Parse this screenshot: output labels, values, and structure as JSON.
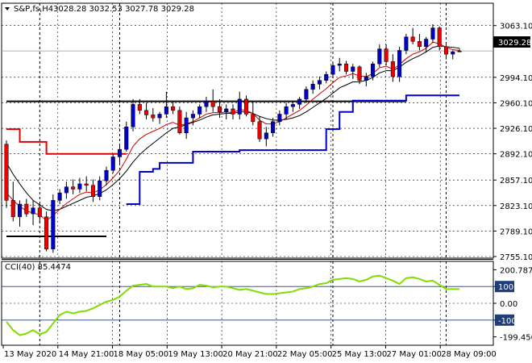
{
  "header": {
    "symbol_line": "S&P,fs,H4",
    "ohlc": "3028.28 3032.53 3027.78 3029.28"
  },
  "price_tag": "3029.28",
  "colors": {
    "bull": "#0000cc",
    "bear": "#ee0000",
    "ma_fast": "#cc0000",
    "ma_slow": "#000000",
    "stop_upper": "#dd0000",
    "stop_lower": "#0000cc",
    "level_line": "#000000",
    "cci": "#80dd00",
    "cci_level": "#1f3f7a",
    "grid": "#000000"
  },
  "chart_data": [
    {
      "type": "candlestick",
      "title": "S&P,fs,H4",
      "ylim": [
        2755.1,
        3080.0
      ],
      "y_ticks": [
        3063.1,
        2994.1,
        2960.1,
        2926.1,
        2892.1,
        2857.1,
        2823.1,
        2789.1,
        2755.1
      ],
      "y_tick_labels": [
        "3063.10",
        "2994.10",
        "2960.10",
        "2926.10",
        "2892.10",
        "2857.10",
        "2823.10",
        "2789.10",
        "2755.10"
      ],
      "x_labels": [
        "13 May 2020",
        "14 May 21:00",
        "18 May 05:00",
        "19 May 13:00",
        "20 May 21:00",
        "22 May 05:00",
        "25 May 13:00",
        "27 May 01:00",
        "28 May 09:00"
      ],
      "candles": [
        [
          2905,
          2910,
          2820,
          2830
        ],
        [
          2830,
          2855,
          2802,
          2808
        ],
        [
          2808,
          2830,
          2795,
          2825
        ],
        [
          2825,
          2832,
          2808,
          2812
        ],
        [
          2812,
          2830,
          2797,
          2820
        ],
        [
          2820,
          2825,
          2800,
          2808
        ],
        [
          2808,
          2815,
          2762,
          2765
        ],
        [
          2765,
          2838,
          2760,
          2830
        ],
        [
          2830,
          2845,
          2825,
          2840
        ],
        [
          2840,
          2855,
          2832,
          2848
        ],
        [
          2848,
          2858,
          2838,
          2845
        ],
        [
          2845,
          2860,
          2840,
          2852
        ],
        [
          2852,
          2862,
          2842,
          2850
        ],
        [
          2850,
          2858,
          2828,
          2835
        ],
        [
          2835,
          2862,
          2830,
          2856
        ],
        [
          2856,
          2875,
          2850,
          2870
        ],
        [
          2870,
          2892,
          2866,
          2888
        ],
        [
          2888,
          2905,
          2880,
          2898
        ],
        [
          2898,
          2935,
          2895,
          2928
        ],
        [
          2928,
          2965,
          2922,
          2958
        ],
        [
          2958,
          2965,
          2945,
          2950
        ],
        [
          2950,
          2960,
          2938,
          2944
        ],
        [
          2944,
          2953,
          2935,
          2940
        ],
        [
          2940,
          2948,
          2932,
          2945
        ],
        [
          2945,
          2975,
          2940,
          2955
        ],
        [
          2955,
          2962,
          2945,
          2950
        ],
        [
          2950,
          2955,
          2918,
          2920
        ],
        [
          2920,
          2948,
          2912,
          2940
        ],
        [
          2940,
          2950,
          2930,
          2945
        ],
        [
          2945,
          2958,
          2940,
          2955
        ],
        [
          2955,
          2968,
          2948,
          2962
        ],
        [
          2962,
          2978,
          2948,
          2955
        ],
        [
          2955,
          2965,
          2940,
          2948
        ],
        [
          2948,
          2958,
          2938,
          2952
        ],
        [
          2952,
          2958,
          2938,
          2945
        ],
        [
          2945,
          2975,
          2938,
          2965
        ],
        [
          2965,
          2970,
          2942,
          2945
        ],
        [
          2945,
          2962,
          2930,
          2935
        ],
        [
          2935,
          2942,
          2908,
          2912
        ],
        [
          2912,
          2928,
          2902,
          2920
        ],
        [
          2920,
          2940,
          2915,
          2935
        ],
        [
          2935,
          2950,
          2930,
          2945
        ],
        [
          2945,
          2960,
          2938,
          2955
        ],
        [
          2955,
          2962,
          2948,
          2958
        ],
        [
          2958,
          2968,
          2952,
          2965
        ],
        [
          2965,
          2982,
          2960,
          2978
        ],
        [
          2978,
          2990,
          2972,
          2985
        ],
        [
          2985,
          2995,
          2978,
          2990
        ],
        [
          2990,
          3002,
          2986,
          2998
        ],
        [
          2998,
          3015,
          2994,
          3010
        ],
        [
          3010,
          3020,
          3002,
          3012
        ],
        [
          3012,
          3016,
          2998,
          3002
        ],
        [
          3002,
          3012,
          2992,
          3008
        ],
        [
          3008,
          3010,
          2985,
          2990
        ],
        [
          2990,
          3000,
          2982,
          2995
        ],
        [
          2995,
          3015,
          2990,
          3012
        ],
        [
          3012,
          3038,
          3008,
          3032
        ],
        [
          3032,
          3038,
          3010,
          3015
        ],
        [
          3015,
          3025,
          2988,
          2995
        ],
        [
          2995,
          3035,
          2988,
          3030
        ],
        [
          3030,
          3052,
          3025,
          3048
        ],
        [
          3048,
          3060,
          3038,
          3042
        ],
        [
          3042,
          3052,
          3030,
          3035
        ],
        [
          3035,
          3048,
          3028,
          3045
        ],
        [
          3045,
          3065,
          3040,
          3060
        ],
        [
          3060,
          3062,
          3030,
          3035
        ],
        [
          3035,
          3040,
          3018,
          3025
        ],
        [
          3025,
          3030,
          3018,
          3028
        ],
        [
          3028,
          3032.53,
          3027.78,
          3029.28
        ]
      ],
      "ma_fast": [
        2840,
        2830,
        2822,
        2816,
        2813,
        2811,
        2803,
        2810,
        2818,
        2826,
        2832,
        2838,
        2841,
        2840,
        2844,
        2851,
        2860,
        2870,
        2885,
        2902,
        2912,
        2918,
        2922,
        2926,
        2931,
        2934,
        2930,
        2932,
        2935,
        2940,
        2945,
        2947,
        2947,
        2948,
        2947,
        2951,
        2950,
        2946,
        2937,
        2932,
        2932,
        2935,
        2940,
        2945,
        2950,
        2957,
        2965,
        2972,
        2979,
        2987,
        2994,
        2996,
        2999,
        2996,
        2995,
        2999,
        3007,
        3009,
        3005,
        3011,
        3019,
        3025,
        3028,
        3033,
        3041,
        3039,
        3034,
        3031,
        3030
      ],
      "ma_slow": [
        2880,
        2865,
        2852,
        2840,
        2830,
        2824,
        2818,
        2816,
        2818,
        2822,
        2826,
        2830,
        2834,
        2836,
        2839,
        2844,
        2851,
        2859,
        2869,
        2881,
        2891,
        2899,
        2906,
        2913,
        2920,
        2926,
        2928,
        2931,
        2934,
        2937,
        2941,
        2944,
        2945,
        2946,
        2946,
        2948,
        2948,
        2946,
        2942,
        2939,
        2937,
        2937,
        2938,
        2940,
        2943,
        2948,
        2954,
        2960,
        2966,
        2973,
        2980,
        2984,
        2988,
        2988,
        2990,
        2994,
        3000,
        3003,
        3003,
        3008,
        3014,
        3019,
        3023,
        3028,
        3034,
        3036,
        3035,
        3034,
        3033
      ],
      "stop_upper_segments": [
        {
          "from": 0,
          "to": 2,
          "value": 2925
        },
        {
          "from": 2,
          "to": 6,
          "value": 2908
        },
        {
          "from": 6,
          "to": 18,
          "value": 2892
        }
      ],
      "stop_lower_segments": [
        {
          "from": 18,
          "to": 20,
          "value": 2825
        },
        {
          "from": 20,
          "to": 22,
          "value": 2868
        },
        {
          "from": 22,
          "to": 23,
          "value": 2872
        },
        {
          "from": 23,
          "to": 28,
          "value": 2880
        },
        {
          "from": 28,
          "to": 35,
          "value": 2895
        },
        {
          "from": 35,
          "to": 43,
          "value": 2897
        },
        {
          "from": 43,
          "to": 48,
          "value": 2897
        },
        {
          "from": 48,
          "to": 50,
          "value": 2925
        },
        {
          "from": 50,
          "to": 52,
          "value": 2948
        },
        {
          "from": 52,
          "to": 56,
          "value": 2963
        },
        {
          "from": 56,
          "to": 60,
          "value": 2963
        },
        {
          "from": 60,
          "to": 68,
          "value": 2970
        }
      ],
      "horizontal_levels": [
        {
          "value": 2962,
          "from": 0,
          "to": 60
        },
        {
          "value": 2782,
          "from": 0,
          "to": 15
        }
      ],
      "vertical_markers_at": [
        5,
        17,
        49,
        66
      ]
    },
    {
      "type": "line",
      "title": "CCI(40) 85.4474",
      "ylim": [
        -250,
        250
      ],
      "levels": [
        100,
        -100
      ],
      "y_tick_labels": [
        "200.787",
        "100",
        "0.00",
        "-100",
        "-199.4507"
      ],
      "y_tick_values": [
        200,
        100,
        0,
        -100,
        -200
      ],
      "values": [
        -110,
        -160,
        -190,
        -180,
        -160,
        -185,
        -170,
        -120,
        -70,
        -50,
        -60,
        -50,
        -45,
        -30,
        -10,
        10,
        20,
        40,
        75,
        105,
        110,
        115,
        100,
        100,
        100,
        90,
        100,
        85,
        90,
        110,
        105,
        95,
        100,
        100,
        90,
        80,
        85,
        75,
        65,
        55,
        55,
        60,
        65,
        70,
        85,
        90,
        100,
        115,
        120,
        140,
        145,
        150,
        145,
        130,
        140,
        160,
        165,
        150,
        135,
        115,
        150,
        155,
        145,
        130,
        135,
        110,
        85,
        85,
        85
      ]
    }
  ]
}
